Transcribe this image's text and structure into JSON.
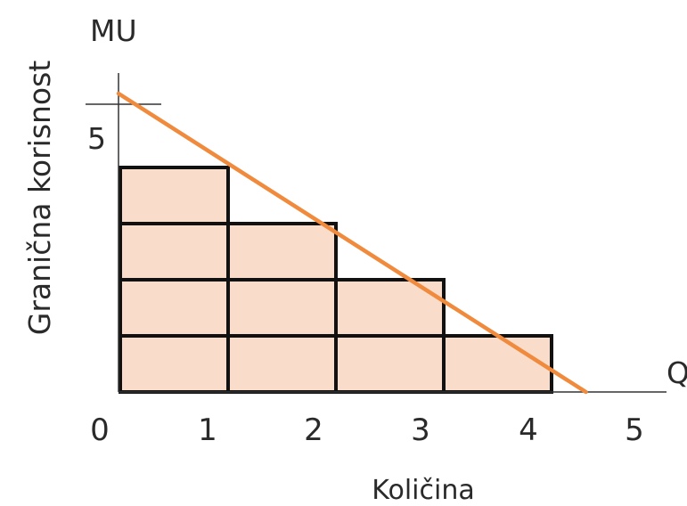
{
  "chart_data": {
    "type": "bar",
    "title": "",
    "xlabel": "Količina",
    "ylabel": "Granična korisnost",
    "y_axis_tag": "MU",
    "x_axis_tag": "Q",
    "x_ticks": [
      "0",
      "1",
      "2",
      "3",
      "4",
      "5"
    ],
    "y_ticks": [
      "5"
    ],
    "xlim": [
      0,
      5
    ],
    "ylim": [
      0,
      5
    ],
    "grid": false,
    "categories": [
      "1",
      "2",
      "3",
      "4"
    ],
    "values": [
      4,
      3,
      2,
      1
    ],
    "bar_row_height": 1,
    "line": {
      "x": [
        0,
        4.5
      ],
      "y": [
        5,
        0
      ]
    },
    "colors": {
      "bar_fill": "#fadccb",
      "bar_stroke": "#111111",
      "line": "#f08a3c",
      "axis": "#333333"
    }
  }
}
